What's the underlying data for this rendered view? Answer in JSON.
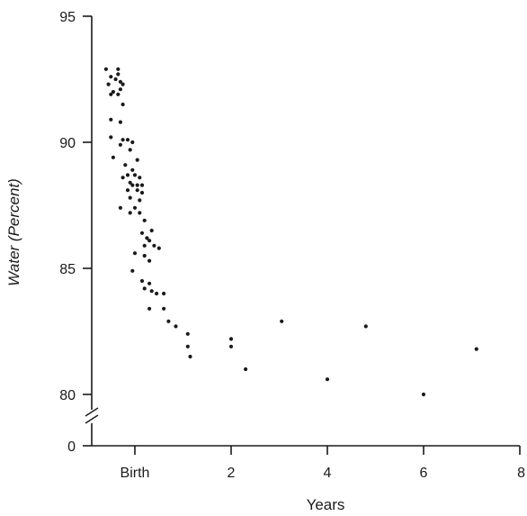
{
  "chart_data": {
    "type": "scatter",
    "title": "",
    "xlabel": "Years",
    "ylabel": "Water (Percent)",
    "xlim": [
      -0.5,
      8
    ],
    "ylim": [
      80,
      95
    ],
    "y_axis_break": {
      "below": 80,
      "baseline_label": "0"
    },
    "x_ticks": [
      {
        "value": 0,
        "label": "Birth"
      },
      {
        "value": 2,
        "label": "2"
      },
      {
        "value": 4,
        "label": "4"
      },
      {
        "value": 6,
        "label": "6"
      },
      {
        "value": 8,
        "label": "8"
      }
    ],
    "y_ticks": [
      {
        "value": 80,
        "label": "80"
      },
      {
        "value": 85,
        "label": "85"
      },
      {
        "value": 90,
        "label": "90"
      },
      {
        "value": 95,
        "label": "95"
      }
    ],
    "grid": false,
    "legend": "none",
    "point_color": "#1a1a1a",
    "series": [
      {
        "points": [
          [
            -0.6,
            92.9
          ],
          [
            -0.5,
            92.6
          ],
          [
            -0.55,
            92.3
          ],
          [
            -0.45,
            92.0
          ],
          [
            -0.5,
            91.9
          ],
          [
            -0.35,
            92.9
          ],
          [
            -0.35,
            92.7
          ],
          [
            -0.4,
            92.5
          ],
          [
            -0.3,
            92.4
          ],
          [
            -0.25,
            92.3
          ],
          [
            -0.3,
            92.1
          ],
          [
            -0.35,
            91.9
          ],
          [
            -0.25,
            91.5
          ],
          [
            -0.5,
            90.9
          ],
          [
            -0.3,
            90.8
          ],
          [
            -0.5,
            90.2
          ],
          [
            -0.25,
            90.1
          ],
          [
            -0.15,
            90.1
          ],
          [
            -0.05,
            90.0
          ],
          [
            -0.3,
            89.9
          ],
          [
            -0.1,
            89.7
          ],
          [
            -0.45,
            89.4
          ],
          [
            0.05,
            89.3
          ],
          [
            -0.2,
            89.1
          ],
          [
            -0.05,
            88.9
          ],
          [
            -0.15,
            88.7
          ],
          [
            0.0,
            88.7
          ],
          [
            -0.25,
            88.6
          ],
          [
            0.1,
            88.6
          ],
          [
            -0.1,
            88.4
          ],
          [
            -0.05,
            88.3
          ],
          [
            0.05,
            88.3
          ],
          [
            0.15,
            88.3
          ],
          [
            -0.15,
            88.1
          ],
          [
            0.05,
            88.1
          ],
          [
            0.15,
            88.0
          ],
          [
            -0.1,
            87.8
          ],
          [
            0.1,
            87.7
          ],
          [
            -0.3,
            87.4
          ],
          [
            0.0,
            87.4
          ],
          [
            -0.1,
            87.2
          ],
          [
            0.1,
            87.2
          ],
          [
            0.2,
            86.9
          ],
          [
            0.15,
            86.4
          ],
          [
            0.35,
            86.5
          ],
          [
            0.25,
            86.2
          ],
          [
            0.2,
            85.9
          ],
          [
            0.3,
            86.1
          ],
          [
            0.4,
            85.9
          ],
          [
            0.5,
            85.8
          ],
          [
            0.0,
            85.6
          ],
          [
            0.2,
            85.5
          ],
          [
            0.3,
            85.3
          ],
          [
            -0.05,
            84.9
          ],
          [
            0.15,
            84.5
          ],
          [
            0.3,
            84.4
          ],
          [
            0.2,
            84.2
          ],
          [
            0.35,
            84.1
          ],
          [
            0.45,
            84.0
          ],
          [
            0.6,
            84.0
          ],
          [
            0.3,
            83.4
          ],
          [
            0.6,
            83.4
          ],
          [
            0.7,
            82.9
          ],
          [
            0.85,
            82.7
          ],
          [
            1.1,
            82.4
          ],
          [
            1.1,
            81.9
          ],
          [
            1.15,
            81.5
          ],
          [
            2.0,
            82.2
          ],
          [
            2.0,
            81.9
          ],
          [
            2.3,
            81.0
          ],
          [
            3.05,
            82.9
          ],
          [
            4.0,
            80.6
          ],
          [
            4.8,
            82.7
          ],
          [
            6.0,
            80.0
          ],
          [
            7.1,
            81.8
          ]
        ]
      }
    ]
  }
}
